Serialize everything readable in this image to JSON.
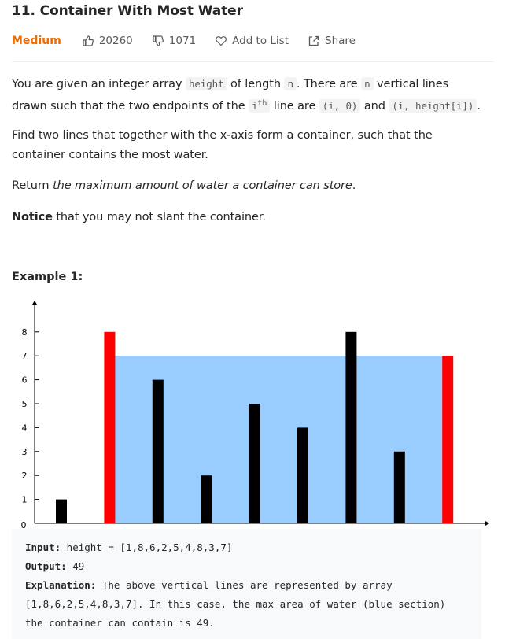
{
  "problem": {
    "title": "11. Container With Most Water",
    "difficulty": "Medium",
    "likes": "20260",
    "dislikes": "1071",
    "add_to_list": "Add to List",
    "share": "Share"
  },
  "description": {
    "p1_a": "You are given an integer array ",
    "p1_code1": "height",
    "p1_b": " of length ",
    "p1_code2": "n",
    "p1_c": ". There are ",
    "p1_code3": "n",
    "p1_d": " vertical lines drawn such that the two endpoints of the ",
    "p1_code4": "i",
    "p1_sup": "th",
    "p1_e": " line are ",
    "p1_code5": "(i, 0)",
    "p1_f": " and ",
    "p1_code6": "(i, height[i])",
    "p1_g": ".",
    "p2": "Find two lines that together with the x-axis form a container, such that the container contains the most water.",
    "p3_a": "Return ",
    "p3_em": "the maximum amount of water a container can store",
    "p3_b": ".",
    "p4_strong": "Notice",
    "p4_rest": " that you may not slant the container."
  },
  "example": {
    "title": "Example 1:",
    "input_label": "Input:",
    "input_value": " height = [1,8,6,2,5,4,8,3,7]",
    "output_label": "Output:",
    "output_value": " 49",
    "explanation_label": "Explanation:",
    "explanation_value": " The above vertical lines are represented by array [1,8,6,2,5,4,8,3,7]. In this case, the max area of water (blue section) the container can contain is 49."
  },
  "colors": {
    "accent_medium": "#ef6c00",
    "bar_default": "#000000",
    "bar_highlight": "#ff0000",
    "water": "#99ccff"
  },
  "chart_data": {
    "type": "bar",
    "x": [
      0,
      1,
      2,
      3,
      4,
      5,
      6,
      7,
      8
    ],
    "values": [
      1,
      8,
      6,
      2,
      5,
      4,
      8,
      3,
      7
    ],
    "highlight_indices": [
      1,
      8
    ],
    "water_level": 7,
    "water_range": [
      1,
      8
    ],
    "y_ticks": [
      "0",
      "1",
      "2",
      "3",
      "4",
      "5",
      "6",
      "7",
      "8"
    ],
    "ylim": [
      0,
      8
    ],
    "title": "",
    "xlabel": "",
    "ylabel": "",
    "grid": false
  }
}
